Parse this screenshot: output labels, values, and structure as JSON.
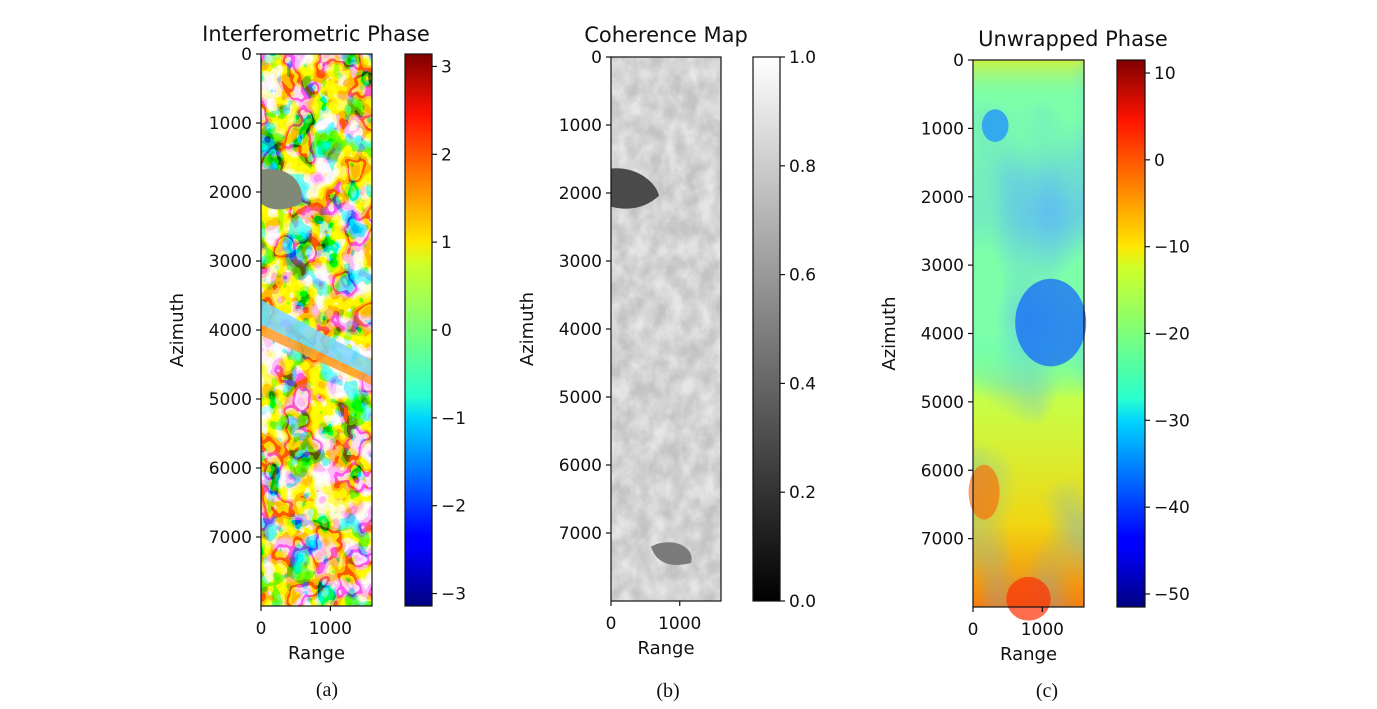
{
  "chart_data": [
    {
      "type": "heatmap",
      "panel_label": "(a)",
      "title": "Interferometric Phase",
      "xlabel": "Range",
      "ylabel": "Azimuth",
      "xlim": [
        0,
        1600
      ],
      "ylim": [
        8000,
        0
      ],
      "xticks": [
        0,
        1000
      ],
      "yticks": [
        0,
        1000,
        2000,
        3000,
        4000,
        5000,
        6000,
        7000
      ],
      "xtick_labels": [
        "0",
        "1000"
      ],
      "ytick_labels": [
        "0",
        "1000",
        "2000",
        "3000",
        "4000",
        "5000",
        "6000",
        "7000"
      ],
      "colormap": "jet",
      "colorbar": {
        "range": [
          -3.1416,
          3.1416
        ],
        "ticks": [
          3,
          2,
          1,
          0,
          -1,
          -2,
          -3
        ],
        "tick_labels": [
          "3",
          "2",
          "1",
          "0",
          "−1",
          "−2",
          "−3"
        ]
      }
    },
    {
      "type": "heatmap",
      "panel_label": "(b)",
      "title": "Coherence Map",
      "xlabel": "Range",
      "ylabel": "Azimuth",
      "xlim": [
        0,
        1600
      ],
      "ylim": [
        8000,
        0
      ],
      "xticks": [
        0,
        1000
      ],
      "yticks": [
        0,
        1000,
        2000,
        3000,
        4000,
        5000,
        6000,
        7000
      ],
      "xtick_labels": [
        "0",
        "1000"
      ],
      "ytick_labels": [
        "0",
        "1000",
        "2000",
        "3000",
        "4000",
        "5000",
        "6000",
        "7000"
      ],
      "colormap": "gray",
      "colorbar": {
        "range": [
          0.0,
          1.0
        ],
        "ticks": [
          1.0,
          0.8,
          0.6,
          0.4,
          0.2,
          0.0
        ],
        "tick_labels": [
          "1.0",
          "0.8",
          "0.6",
          "0.4",
          "0.2",
          "0.0"
        ]
      }
    },
    {
      "type": "heatmap",
      "panel_label": "(c)",
      "title": "Unwrapped Phase",
      "xlabel": "Range",
      "ylabel": "Azimuth",
      "xlim": [
        0,
        1600
      ],
      "ylim": [
        8000,
        0
      ],
      "xticks": [
        0,
        1000
      ],
      "yticks": [
        0,
        1000,
        2000,
        3000,
        4000,
        5000,
        6000,
        7000
      ],
      "xtick_labels": [
        "0",
        "1000"
      ],
      "ytick_labels": [
        "0",
        "1000",
        "2000",
        "3000",
        "4000",
        "5000",
        "6000",
        "7000"
      ],
      "colormap": "jet",
      "colorbar": {
        "range": [
          -51.5,
          11.5
        ],
        "ticks": [
          10,
          0,
          -10,
          -20,
          -30,
          -40,
          -50
        ],
        "tick_labels": [
          "10",
          "0",
          "−10",
          "−20",
          "−30",
          "−40",
          "−50"
        ]
      }
    }
  ]
}
